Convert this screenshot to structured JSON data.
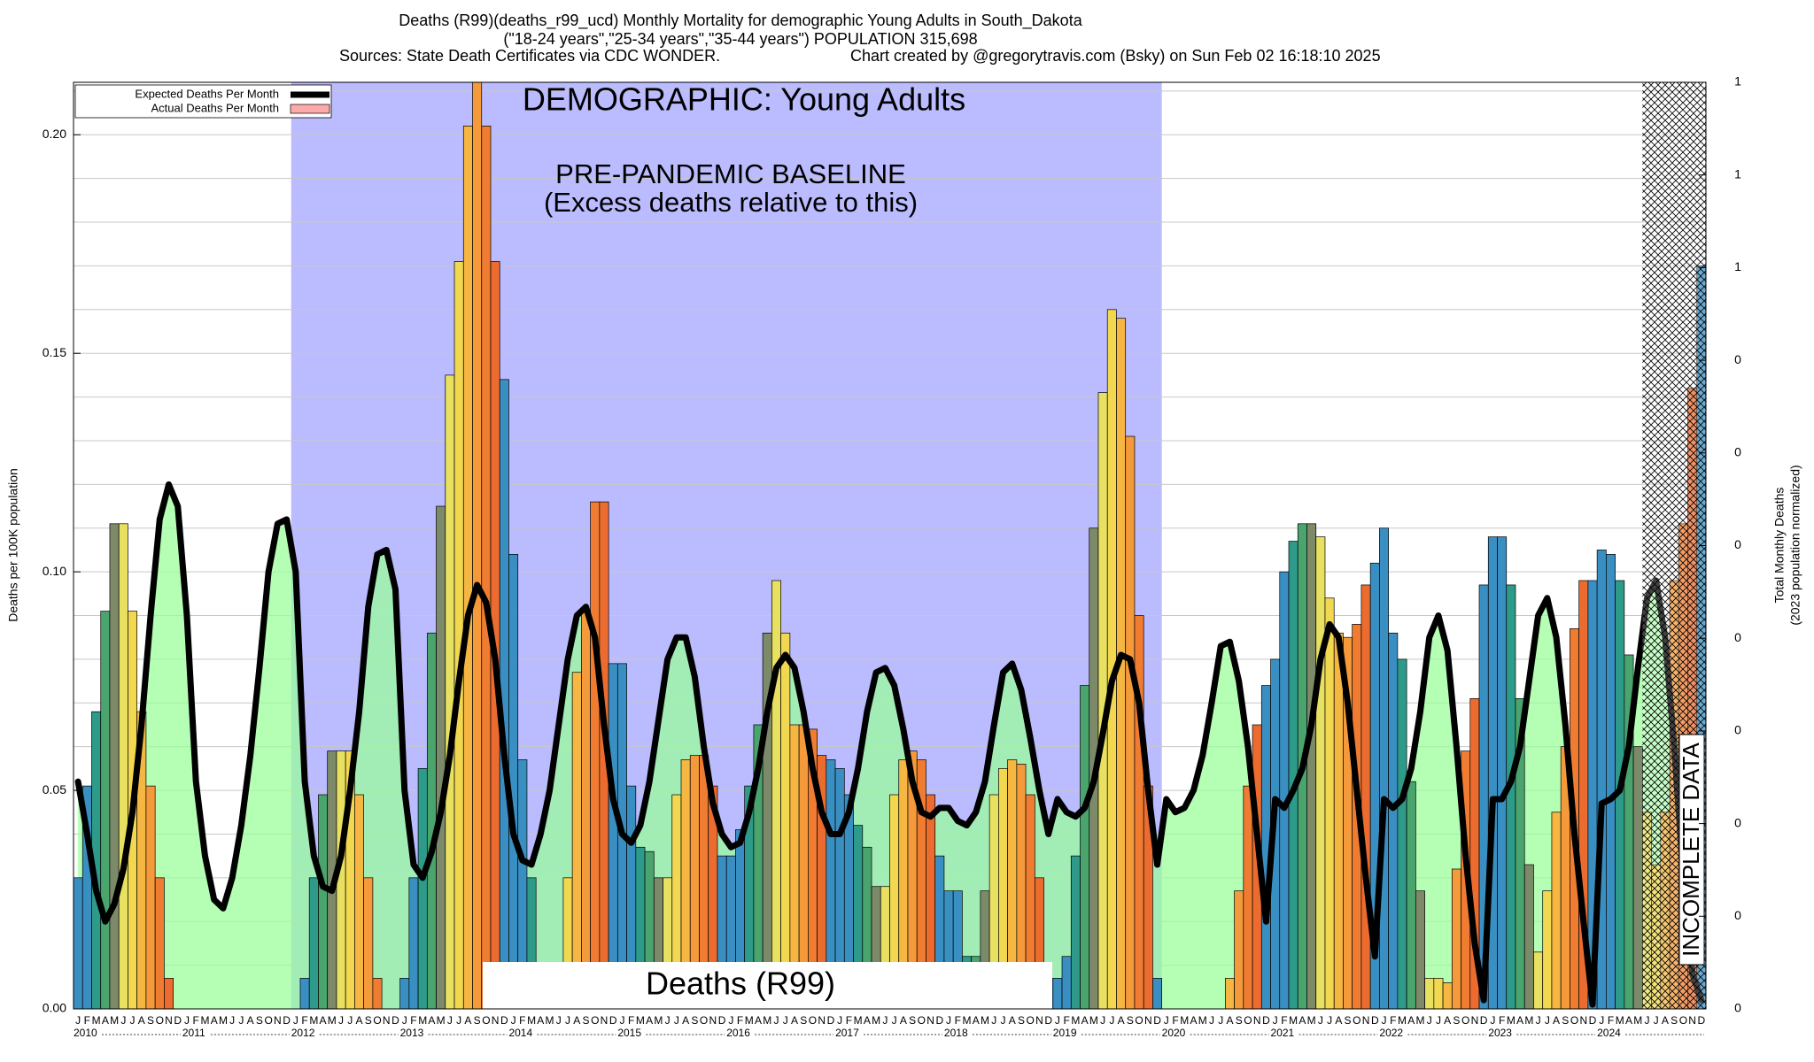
{
  "chart_data": {
    "type": "bar",
    "title": "Deaths (R99)(deaths_r99_ucd) Monthly Mortality for demographic Young Adults in South_Dakota",
    "subtitle": "(\"18-24 years\",\"25-34 years\",\"35-44 years\") POPULATION 315,698",
    "sources": "Sources: State Death Certificates via CDC WONDER.",
    "credit": "Chart created by @gregorytravis.com (Bsky) on Sun Feb 02 16:18:10 2025",
    "ylabel": "Deaths per 100K population",
    "y2label": [
      "Total Monthly Deaths",
      "(2023 population normalized)"
    ],
    "annotations": {
      "demographic": "DEMOGRAPHIC: Young Adults",
      "baseline": "PRE-PANDEMIC BASELINE",
      "baseline_note": "(Excess deaths relative to this)",
      "cause": "Deaths (R99)",
      "incomplete": "INCOMPLETE DATA"
    },
    "baseline_years": [
      "2012",
      "2019"
    ],
    "baseline_color": "#bbbbff",
    "expected_fill": "#99ff99",
    "month_colors": [
      "#3a8fc2",
      "#3a8fc2",
      "#2e9b8a",
      "#4aa46e",
      "#7d8a6a",
      "#e8e060",
      "#f2d850",
      "#f5b742",
      "#f59a3a",
      "#f07c32",
      "#ec6c30",
      "#3a8fc2"
    ],
    "years": [
      "2010",
      "2011",
      "2012",
      "2013",
      "2014",
      "2015",
      "2016",
      "2017",
      "2018",
      "2019",
      "2020",
      "2021",
      "2022",
      "2023",
      "2024"
    ],
    "categories": [
      "J",
      "F",
      "M",
      "A",
      "M",
      "J",
      "J",
      "A",
      "S",
      "O",
      "N",
      "D",
      "J",
      "F",
      "M",
      "A",
      "M",
      "J",
      "J",
      "A",
      "S",
      "O",
      "N",
      "D",
      "J",
      "F",
      "M",
      "A",
      "M",
      "J",
      "J",
      "A",
      "S",
      "O",
      "N",
      "D",
      "J",
      "F",
      "M",
      "A",
      "M",
      "J",
      "J",
      "A",
      "S",
      "O",
      "N",
      "D",
      "J",
      "F",
      "M",
      "A",
      "M",
      "J",
      "J",
      "A",
      "S",
      "O",
      "N",
      "D",
      "J",
      "F",
      "M",
      "A",
      "M",
      "J",
      "J",
      "A",
      "S",
      "O",
      "N",
      "D",
      "J",
      "F",
      "M",
      "A",
      "M",
      "J",
      "J",
      "A",
      "S",
      "O",
      "N",
      "D",
      "J",
      "F",
      "M",
      "A",
      "M",
      "J",
      "J",
      "A",
      "S",
      "O",
      "N",
      "D",
      "J",
      "F",
      "M",
      "A",
      "M",
      "J",
      "J",
      "A",
      "S",
      "O",
      "N",
      "D",
      "J",
      "F",
      "M",
      "A",
      "M",
      "J",
      "J",
      "A",
      "S",
      "O",
      "N",
      "D",
      "J",
      "F",
      "M",
      "A",
      "M",
      "J",
      "J",
      "A",
      "S",
      "O",
      "N",
      "D",
      "J",
      "F",
      "M",
      "A",
      "M",
      "J",
      "J",
      "A",
      "S",
      "O",
      "N",
      "D",
      "J",
      "F",
      "M",
      "A",
      "M",
      "J",
      "J",
      "A",
      "S",
      "O",
      "N",
      "D",
      "J",
      "F",
      "M",
      "A",
      "M",
      "J",
      "J",
      "A",
      "S",
      "O",
      "N",
      "D",
      "J",
      "F",
      "M",
      "A",
      "M",
      "J",
      "J",
      "A",
      "S",
      "O",
      "N",
      "D"
    ],
    "series": [
      {
        "name": "Expected Deaths Per Month",
        "type": "line",
        "color": "#000000",
        "values": [
          0.052,
          0.04,
          0.027,
          0.02,
          0.024,
          0.032,
          0.045,
          0.065,
          0.09,
          0.112,
          0.12,
          0.115,
          0.09,
          0.052,
          0.035,
          0.025,
          0.023,
          0.03,
          0.042,
          0.058,
          0.078,
          0.1,
          0.111,
          0.112,
          0.1,
          0.052,
          0.035,
          0.028,
          0.027,
          0.035,
          0.05,
          0.068,
          0.092,
          0.104,
          0.105,
          0.096,
          0.05,
          0.033,
          0.03,
          0.036,
          0.045,
          0.058,
          0.075,
          0.09,
          0.097,
          0.093,
          0.08,
          0.058,
          0.04,
          0.034,
          0.033,
          0.04,
          0.05,
          0.065,
          0.08,
          0.09,
          0.092,
          0.085,
          0.065,
          0.048,
          0.04,
          0.038,
          0.042,
          0.052,
          0.066,
          0.08,
          0.085,
          0.085,
          0.076,
          0.06,
          0.047,
          0.04,
          0.037,
          0.038,
          0.045,
          0.055,
          0.068,
          0.078,
          0.081,
          0.078,
          0.068,
          0.055,
          0.045,
          0.04,
          0.04,
          0.045,
          0.055,
          0.068,
          0.077,
          0.078,
          0.074,
          0.064,
          0.052,
          0.045,
          0.044,
          0.046,
          0.046,
          0.043,
          0.042,
          0.045,
          0.052,
          0.065,
          0.077,
          0.079,
          0.073,
          0.062,
          0.05,
          0.04,
          0.048,
          0.045,
          0.044,
          0.046,
          0.052,
          0.063,
          0.075,
          0.081,
          0.08,
          0.07,
          0.05,
          0.033,
          0.048,
          0.045,
          0.046,
          0.05,
          0.058,
          0.07,
          0.083,
          0.084,
          0.075,
          0.06,
          0.04,
          0.02,
          0.048,
          0.046,
          0.05,
          0.055,
          0.065,
          0.08,
          0.088,
          0.085,
          0.07,
          0.05,
          0.03,
          0.012,
          0.048,
          0.046,
          0.048,
          0.055,
          0.068,
          0.085,
          0.09,
          0.082,
          0.06,
          0.035,
          0.015,
          0.002,
          0.048,
          0.048,
          0.052,
          0.06,
          0.075,
          0.09,
          0.094,
          0.085,
          0.065,
          0.04,
          0.02,
          0.001,
          0.047,
          0.048,
          0.05,
          0.06,
          0.078,
          0.094,
          0.098,
          0.085,
          0.06,
          0.03,
          0.008,
          0.002
        ]
      },
      {
        "name": "Actual Deaths Per Month",
        "type": "bar",
        "color": "#ffaaaa",
        "values": [
          0.03,
          0.051,
          0.068,
          0.091,
          0.111,
          0.111,
          0.091,
          0.068,
          0.051,
          0.03,
          0.007,
          0,
          0,
          0,
          0,
          0,
          0,
          0,
          0,
          0,
          0,
          0,
          0,
          0,
          0,
          0.007,
          0.03,
          0.049,
          0.059,
          0.059,
          0.059,
          0.049,
          0.03,
          0.007,
          0,
          0,
          0.007,
          0.03,
          0.055,
          0.086,
          0.115,
          0.145,
          0.171,
          0.202,
          0.212,
          0.202,
          0.171,
          0.144,
          0.104,
          0.057,
          0.03,
          0.007,
          0,
          0,
          0.03,
          0.077,
          0.091,
          0.116,
          0.116,
          0.079,
          0.079,
          0.051,
          0.037,
          0.036,
          0.03,
          0.03,
          0.049,
          0.057,
          0.058,
          0.058,
          0.051,
          0.035,
          0.035,
          0.041,
          0.051,
          0.065,
          0.086,
          0.098,
          0.086,
          0.065,
          0.065,
          0.064,
          0.058,
          0.057,
          0.055,
          0.049,
          0.042,
          0.037,
          0.028,
          0.028,
          0.049,
          0.057,
          0.059,
          0.057,
          0.049,
          0.035,
          0.027,
          0.027,
          0.012,
          0.012,
          0.027,
          0.049,
          0.055,
          0.057,
          0.056,
          0.049,
          0.03,
          0.007,
          0.007,
          0.012,
          0.035,
          0.074,
          0.11,
          0.141,
          0.16,
          0.158,
          0.131,
          0.09,
          0.051,
          0.007,
          0,
          0,
          0,
          0,
          0,
          0,
          0,
          0.007,
          0.027,
          0.051,
          0.065,
          0.074,
          0.08,
          0.1,
          0.107,
          0.111,
          0.111,
          0.108,
          0.094,
          0.086,
          0.085,
          0.088,
          0.097,
          0.102,
          0.11,
          0.086,
          0.08,
          0.052,
          0.027,
          0.007,
          0.007,
          0.006,
          0.032,
          0.059,
          0.071,
          0.097,
          0.108,
          0.108,
          0.097,
          0.071,
          0.033,
          0.013,
          0.027,
          0.045,
          0.06,
          0.087,
          0.098,
          0.098,
          0.105,
          0.104,
          0.098,
          0.081,
          0.06,
          0.045,
          0.033,
          0.045,
          0.098,
          0.111,
          0.142,
          0.17
        ]
      }
    ],
    "ylim": [
      0,
      0.212
    ],
    "yticks": [
      {
        "value": 0,
        "label": "0.00"
      },
      {
        "value": 0.05,
        "label": "0.05"
      },
      {
        "value": 0.1,
        "label": "0.10"
      },
      {
        "value": 0.15,
        "label": "0.15"
      },
      {
        "value": 0.2,
        "label": "0.20"
      }
    ],
    "minor_yticks": [
      0.01,
      0.02,
      0.03,
      0.04,
      0.06,
      0.07,
      0.08,
      0.09,
      0.11,
      0.12,
      0.13,
      0.14,
      0.16,
      0.17,
      0.18,
      0.19,
      0.21
    ],
    "y2lim": [
      0,
      1
    ],
    "y2ticks": [
      {
        "value": 0,
        "label": "0"
      },
      {
        "value": 0.1,
        "label": "0"
      },
      {
        "value": 0.2,
        "label": "0"
      },
      {
        "value": 0.3,
        "label": "0"
      },
      {
        "value": 0.4,
        "label": "0"
      },
      {
        "value": 0.5,
        "label": "0"
      },
      {
        "value": 0.6,
        "label": "0"
      },
      {
        "value": 0.7,
        "label": "0"
      },
      {
        "value": 0.8,
        "label": "1"
      },
      {
        "value": 0.9,
        "label": "1"
      },
      {
        "value": 1,
        "label": "1"
      }
    ],
    "grid": true
  }
}
